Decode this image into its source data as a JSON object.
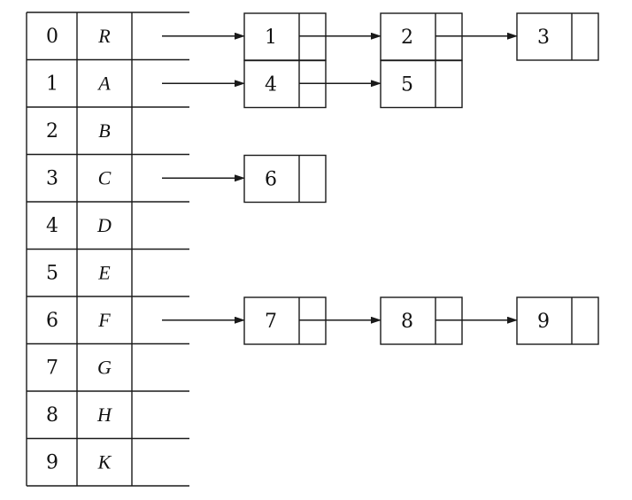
{
  "diagram": {
    "rows": [
      {
        "index": "0",
        "label": "R",
        "chain": [
          "1",
          "2",
          "3"
        ]
      },
      {
        "index": "1",
        "label": "A",
        "chain": [
          "4",
          "5"
        ]
      },
      {
        "index": "2",
        "label": "B",
        "chain": []
      },
      {
        "index": "3",
        "label": "C",
        "chain": [
          "6"
        ]
      },
      {
        "index": "4",
        "label": "D",
        "chain": []
      },
      {
        "index": "5",
        "label": "E",
        "chain": []
      },
      {
        "index": "6",
        "label": "F",
        "chain": [
          "7",
          "8",
          "9"
        ]
      },
      {
        "index": "7",
        "label": "G",
        "chain": []
      },
      {
        "index": "8",
        "label": "H",
        "chain": []
      },
      {
        "index": "9",
        "label": "K",
        "chain": []
      }
    ]
  }
}
